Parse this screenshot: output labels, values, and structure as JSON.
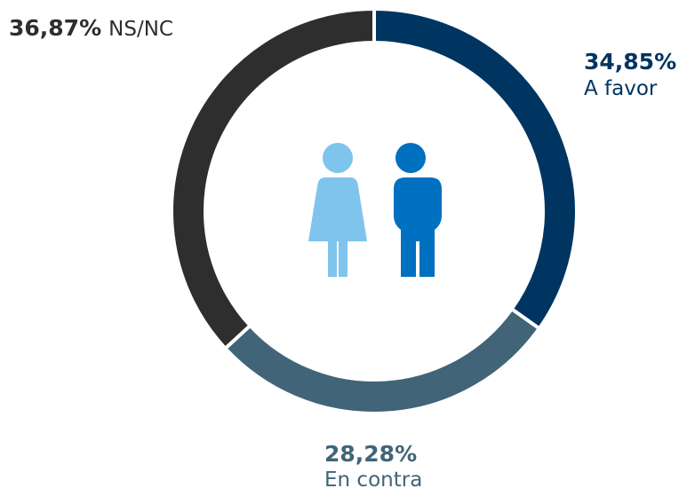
{
  "chart_data": {
    "type": "donut",
    "categories": [
      "A favor",
      "En contra",
      "NS/NC"
    ],
    "values": [
      34.85,
      28.28,
      36.87
    ],
    "value_labels": [
      "34,85%",
      "28,28%",
      "36,87%"
    ],
    "colors": [
      "#003561",
      "#416478",
      "#2e2e2e"
    ]
  }
}
